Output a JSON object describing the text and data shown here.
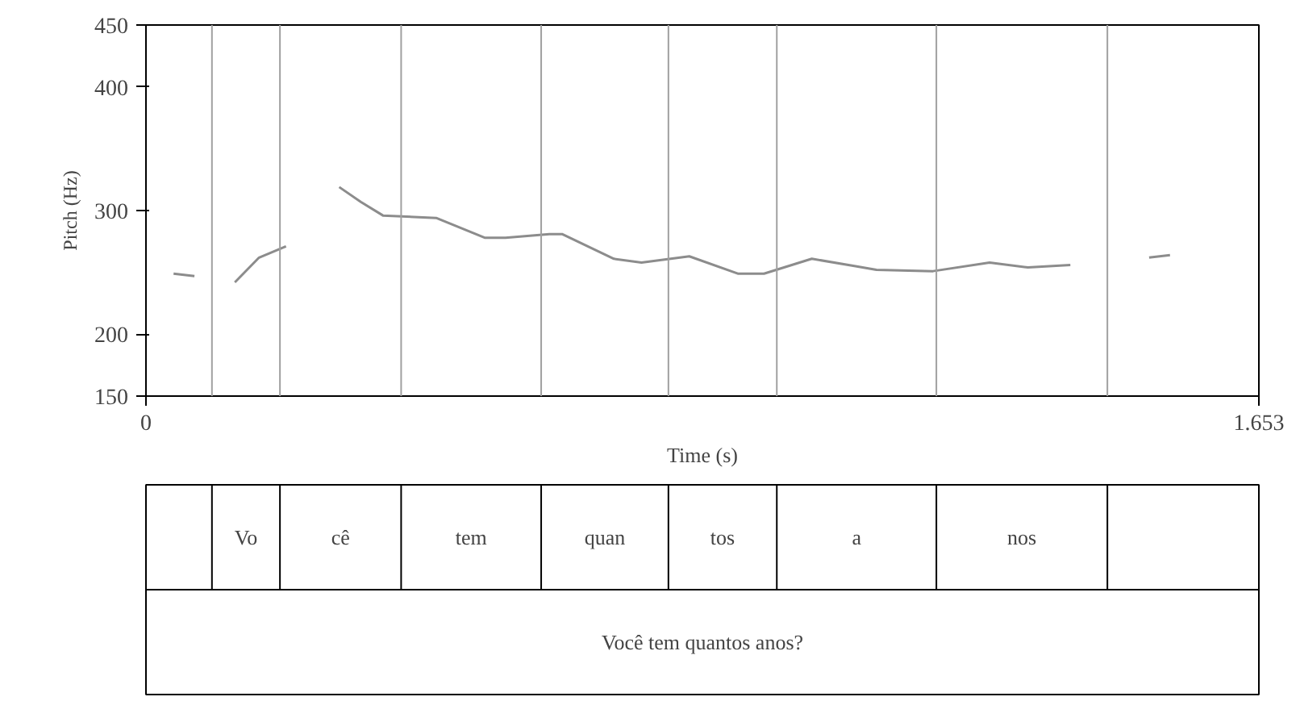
{
  "chart_data": [
    {
      "type": "line",
      "ylabel": "Pitch (Hz)",
      "xlabel": "Time (s)",
      "xlim": [
        0,
        1.653
      ],
      "xticks": [
        0,
        1.653
      ],
      "ylim": [
        150,
        450
      ],
      "yticks": [
        150,
        200,
        300,
        400,
        450
      ],
      "x": [
        0.041,
        0.072,
        0.1,
        0.132,
        0.168,
        0.208,
        0.25,
        0.287,
        0.319,
        0.352,
        0.431,
        0.503,
        0.534,
        0.599,
        0.618,
        0.695,
        0.736,
        0.807,
        0.879,
        0.918,
        0.989,
        1.054,
        1.085,
        1.169,
        1.253,
        1.31,
        1.373,
        1.43,
        1.49,
        1.521
      ],
      "series": [
        {
          "color": "#8c8c8c",
          "values": [
            249,
            247,
            null,
            242,
            262,
            271,
            null,
            319,
            307,
            296,
            294,
            278,
            278,
            281,
            281,
            261,
            258,
            263,
            249,
            249,
            261,
            255,
            252,
            251,
            258,
            254,
            256,
            null,
            262,
            264
          ]
        }
      ],
      "grid": false,
      "line_style": "solid",
      "marker": "none",
      "ref_lines": [
        {
          "axis": "x",
          "value": 0.098,
          "color": "#a0a0a0"
        },
        {
          "axis": "x",
          "value": 0.199,
          "color": "#a0a0a0"
        },
        {
          "axis": "x",
          "value": 0.379,
          "color": "#a0a0a0"
        },
        {
          "axis": "x",
          "value": 0.587,
          "color": "#a0a0a0"
        },
        {
          "axis": "x",
          "value": 0.776,
          "color": "#a0a0a0"
        },
        {
          "axis": "x",
          "value": 0.937,
          "color": "#a0a0a0"
        },
        {
          "axis": "x",
          "value": 1.174,
          "color": "#a0a0a0"
        },
        {
          "axis": "x",
          "value": 1.428,
          "color": "#a0a0a0"
        }
      ]
    },
    {
      "type": "other",
      "annotations": [
        "Vo",
        "cê",
        "tem",
        "quan",
        "tos",
        "a",
        "nos",
        "Você tem quantos anos?"
      ]
    }
  ]
}
